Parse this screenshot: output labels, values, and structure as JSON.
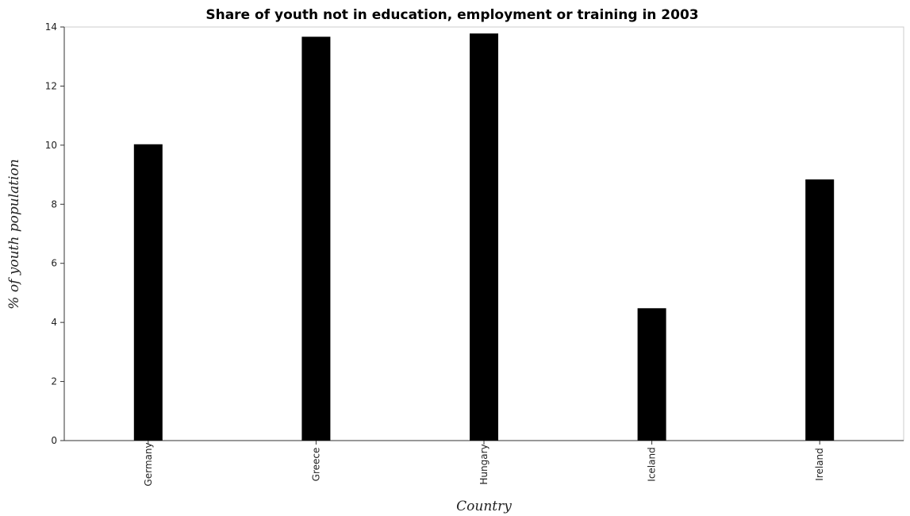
{
  "chart_data": {
    "type": "bar",
    "title": "Share of youth not in education, employment or training in 2003",
    "xlabel": "Country",
    "ylabel": "% of youth population",
    "categories": [
      "Germany",
      "Greece",
      "Hungary",
      "Iceland",
      "Ireland"
    ],
    "values": [
      10.03,
      13.67,
      13.78,
      4.48,
      8.84
    ],
    "ylim": [
      0,
      14
    ],
    "yticks": [
      0,
      2,
      4,
      6,
      8,
      10,
      12,
      14
    ],
    "grid": false,
    "bar_color": "#000000"
  }
}
